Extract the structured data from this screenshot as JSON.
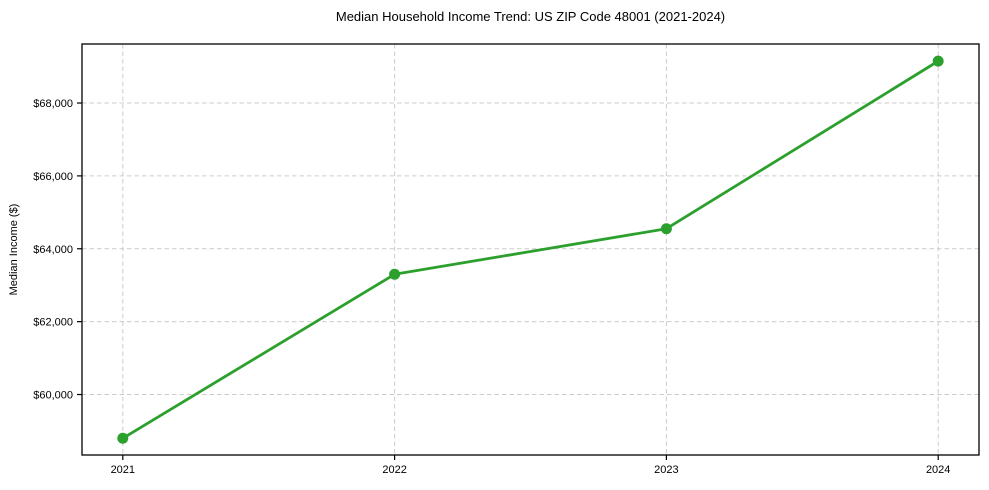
{
  "chart_data": {
    "type": "line",
    "title": "Median Household Income Trend: US ZIP Code 48001 (2021-2024)",
    "xlabel": "",
    "ylabel": "Median Income ($)",
    "categories": [
      "2021",
      "2022",
      "2023",
      "2024"
    ],
    "values": [
      58800,
      63300,
      64550,
      69150
    ],
    "ytick_values": [
      60000,
      62000,
      64000,
      66000,
      68000
    ],
    "ytick_labels": [
      "$60,000",
      "$62,000",
      "$64,000",
      "$66,000",
      "$68,000"
    ],
    "ylim": [
      58340,
      69620
    ],
    "grid": true,
    "grid_style": "dashed",
    "legend_position": "none",
    "line_color": "#2ca02c",
    "marker": "circle",
    "grid_color": "#cccccc",
    "spine_color": "#000000",
    "background_color": "#ffffff"
  }
}
